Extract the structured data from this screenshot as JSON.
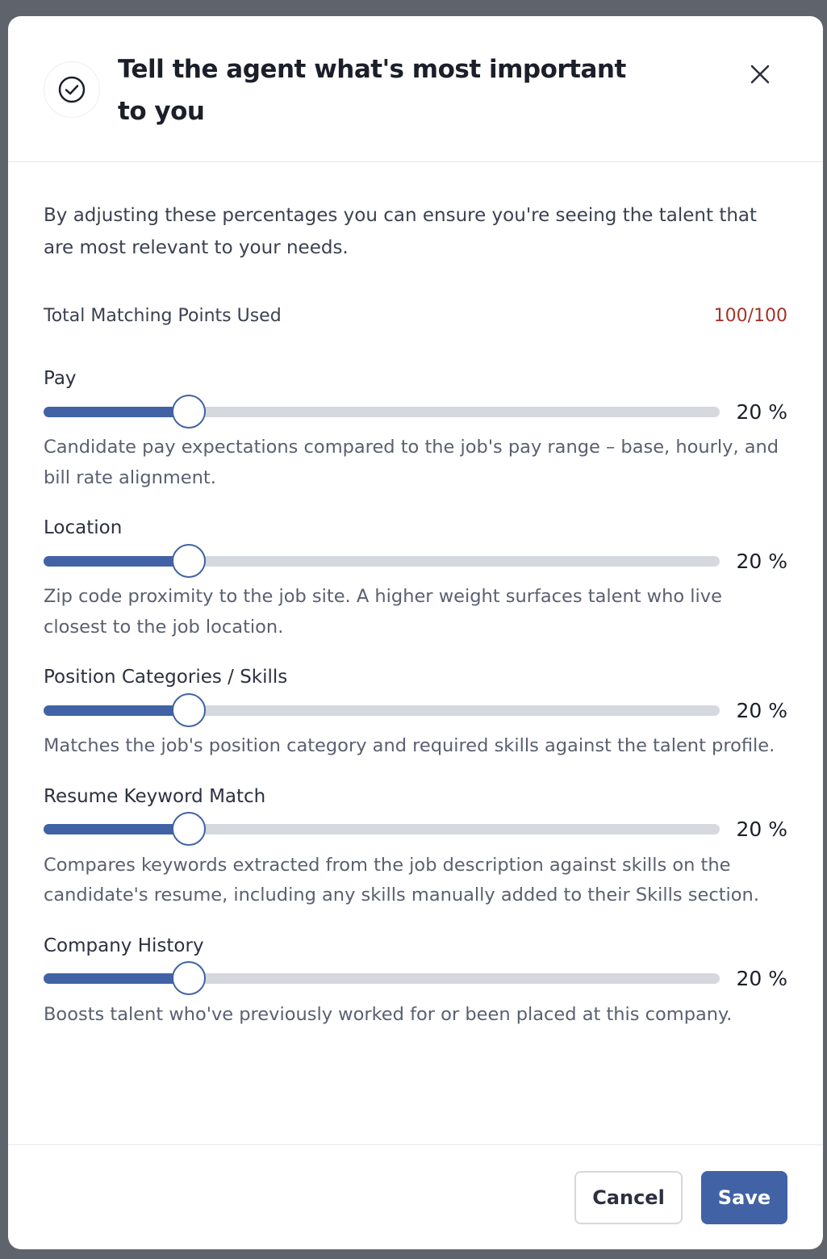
{
  "header": {
    "title": "Tell the agent what's most important to you"
  },
  "intro": "By adjusting these percentages you can ensure you're seeing the talent that are most relevant to your needs.",
  "total": {
    "label": "Total Matching Points Used",
    "value_label": "100/100"
  },
  "criteria": [
    {
      "label": "Pay",
      "value": 20,
      "value_label": "20 %",
      "description": "Candidate pay expectations compared to the job's pay range – base, hourly, and bill rate alignment."
    },
    {
      "label": "Location",
      "value": 20,
      "value_label": "20 %",
      "description": "Zip code proximity to the job site. A higher weight surfaces talent who live closest to the job location."
    },
    {
      "label": "Position Categories / Skills",
      "value": 20,
      "value_label": "20 %",
      "description": "Matches the job's position category and required skills against the talent profile."
    },
    {
      "label": "Resume Keyword Match",
      "value": 20,
      "value_label": "20 %",
      "description": "Compares keywords extracted from the job description against skills on the candidate's resume, including any skills manually added to their Skills section."
    },
    {
      "label": "Company History",
      "value": 20,
      "value_label": "20 %",
      "description": "Boosts talent who've previously worked for or been placed at this company."
    }
  ],
  "footer": {
    "cancel": "Cancel",
    "save": "Save"
  }
}
